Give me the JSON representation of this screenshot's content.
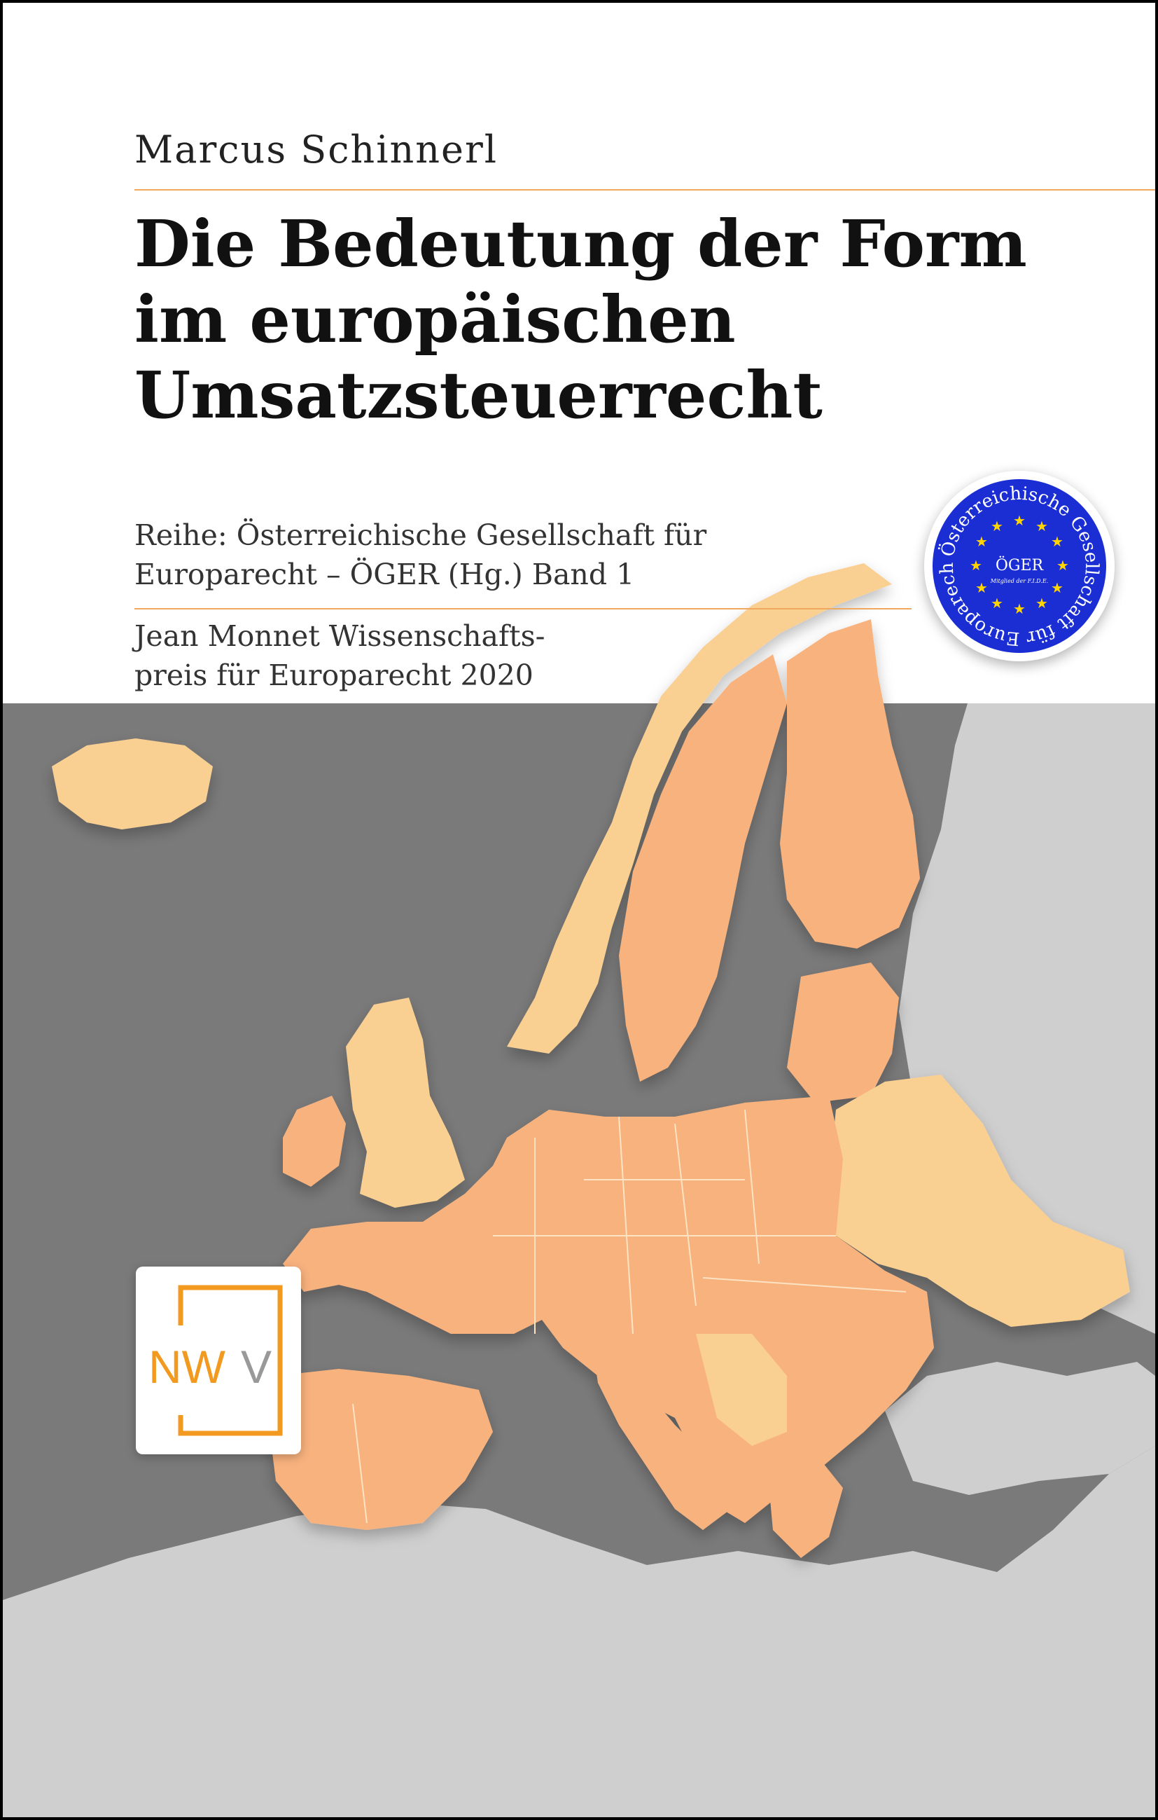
{
  "cover": {
    "author": "Marcus Schinnerl",
    "title_lines": [
      "Die Bedeutung der Form",
      "im europäischen",
      "Umsatzsteuerrecht"
    ],
    "series_lines": [
      "Reihe: Österreichische Gesellschaft für",
      "Europarecht – ÖGER (Hg.)  Band 1"
    ],
    "prize_lines": [
      "Jean Monnet Wissenschafts-",
      "preis für Europarecht 2020"
    ]
  },
  "publisher_logo": {
    "text_n": "NW",
    "text_v": "V"
  },
  "seal": {
    "ring_text": "Österreichische Gesellschaft für Europarecht",
    "center_text": "ÖGER",
    "sub_text": "Mitglied der F.I.D.E."
  },
  "colors": {
    "accent_rule": "#f0a85c",
    "map_sea": "#7a7a7a",
    "map_eu": "#f8b27e",
    "map_noneu": "#f9cf92",
    "map_land_grey": "#cfcfcf",
    "logo_orange": "#f29a1f",
    "seal_blue": "#1a2ed4",
    "seal_star": "#ffd400"
  }
}
